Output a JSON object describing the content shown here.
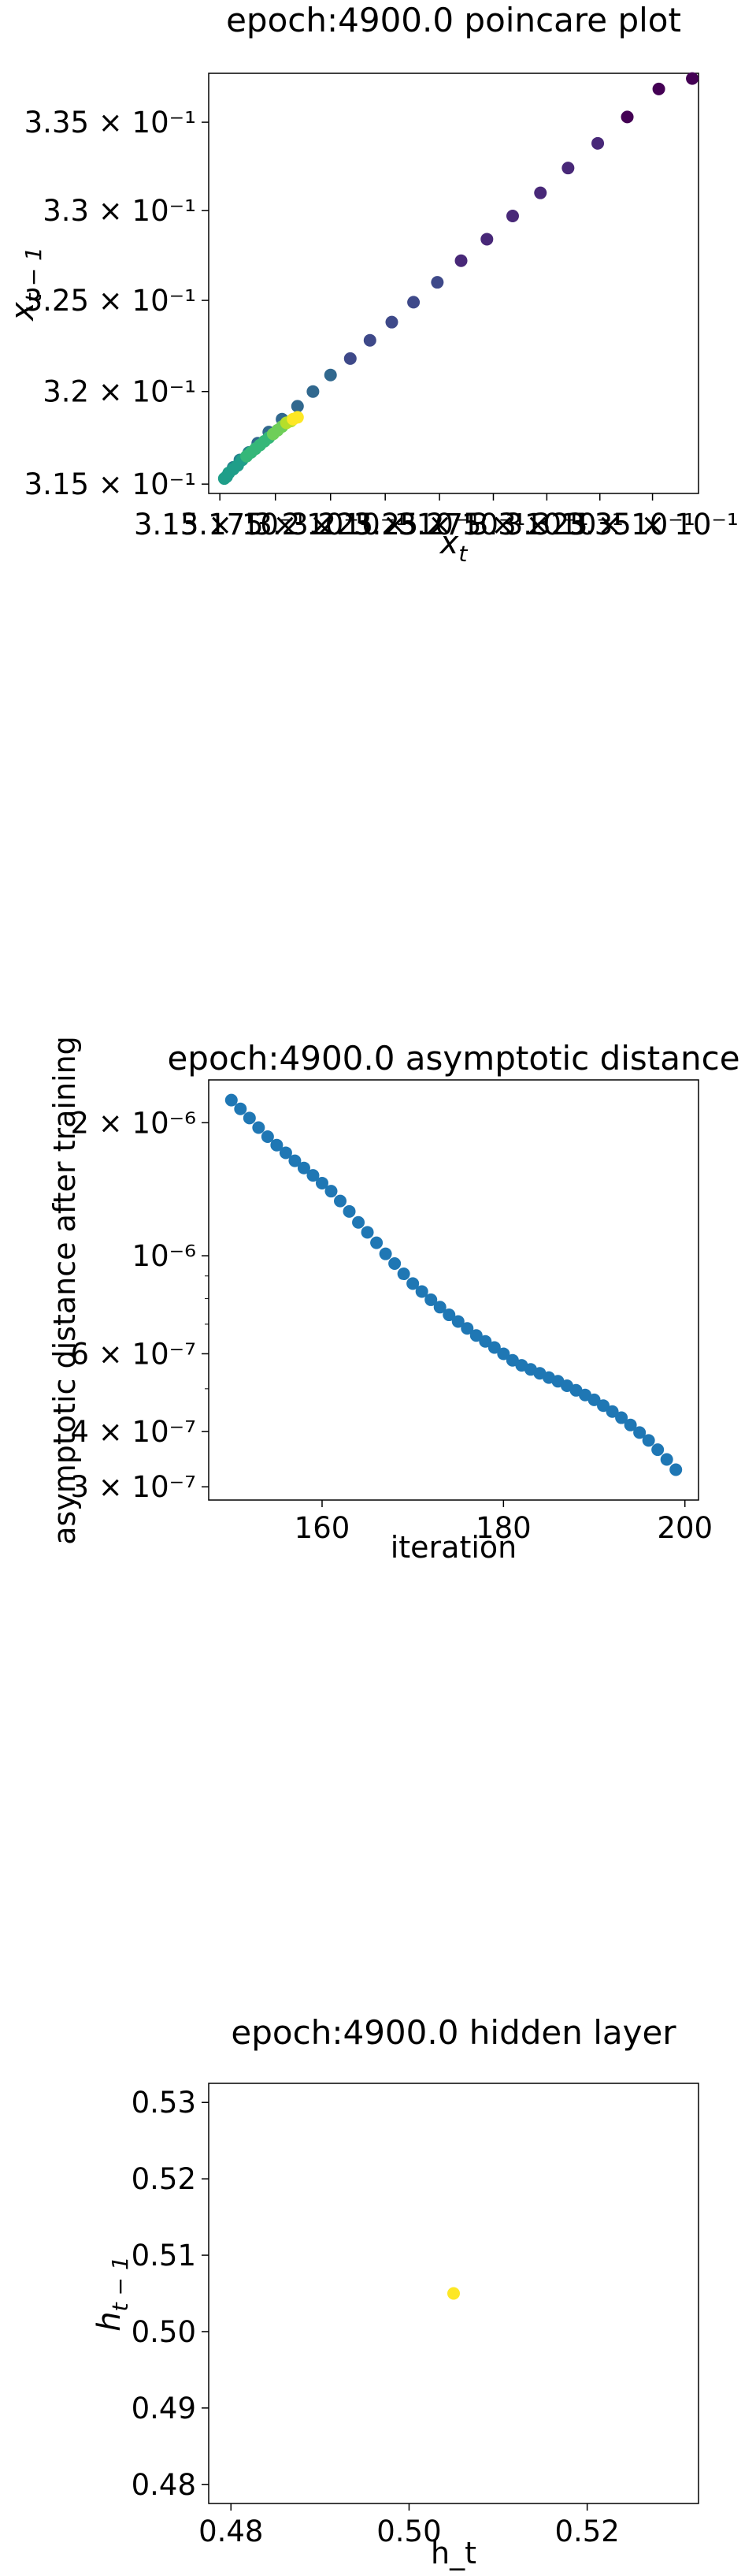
{
  "chart_data": [
    {
      "type": "scatter",
      "title": "epoch:4900.0 poincare plot",
      "xlabel": "x_t",
      "ylabel": "x_{t-1}",
      "x_scale": "log",
      "y_scale": "log",
      "xlim": [
        0.3145,
        0.3372
      ],
      "ylim": [
        0.3145,
        0.3378
      ],
      "y_ticks": [
        {
          "value": 0.315,
          "label": "3.15 × 10⁻¹"
        },
        {
          "value": 0.32,
          "label": "3.2 × 10⁻¹"
        },
        {
          "value": 0.325,
          "label": "3.25 × 10⁻¹"
        },
        {
          "value": 0.33,
          "label": "3.3 × 10⁻¹"
        },
        {
          "value": 0.335,
          "label": "3.35 × 10⁻¹"
        }
      ],
      "x_tick_text": "3.15.3.175.3.2.3.225.3.25.3.275.3.3.3.325.3.35 × 10⁻¹ (overlapping log-axis tick labels, 10⁻¹ repeated)",
      "x_ticks": [
        {
          "value": 0.315,
          "label": "3.15 × 10⁻¹"
        },
        {
          "value": 0.3175,
          "label": "3.175 × 10⁻¹"
        },
        {
          "value": 0.32,
          "label": "3.2 × 10⁻¹"
        },
        {
          "value": 0.3225,
          "label": "3.225 × 10⁻¹"
        },
        {
          "value": 0.325,
          "label": "3.25 × 10⁻¹"
        },
        {
          "value": 0.3275,
          "label": "3.275 × 10⁻¹"
        },
        {
          "value": 0.33,
          "label": "3.3 × 10⁻¹"
        },
        {
          "value": 0.3325,
          "label": "3.325 × 10⁻¹"
        },
        {
          "value": 0.335,
          "label": "3.35 × 10⁻¹"
        }
      ],
      "colormap": "viridis",
      "points": [
        {
          "x": 0.3369,
          "y": 0.3375,
          "c": 0.0
        },
        {
          "x": 0.3353,
          "y": 0.3369,
          "c": 0.02
        },
        {
          "x": 0.3338,
          "y": 0.3353,
          "c": 0.04
        },
        {
          "x": 0.3324,
          "y": 0.3338,
          "c": 0.06
        },
        {
          "x": 0.331,
          "y": 0.3324,
          "c": 0.08
        },
        {
          "x": 0.3297,
          "y": 0.331,
          "c": 0.1
        },
        {
          "x": 0.3284,
          "y": 0.3297,
          "c": 0.12
        },
        {
          "x": 0.3272,
          "y": 0.3284,
          "c": 0.14
        },
        {
          "x": 0.326,
          "y": 0.3272,
          "c": 0.16
        },
        {
          "x": 0.3249,
          "y": 0.326,
          "c": 0.18
        },
        {
          "x": 0.3238,
          "y": 0.3249,
          "c": 0.2
        },
        {
          "x": 0.3228,
          "y": 0.3238,
          "c": 0.22
        },
        {
          "x": 0.3218,
          "y": 0.3228,
          "c": 0.24
        },
        {
          "x": 0.3209,
          "y": 0.3218,
          "c": 0.26
        },
        {
          "x": 0.32,
          "y": 0.3209,
          "c": 0.28
        },
        {
          "x": 0.3192,
          "y": 0.32,
          "c": 0.3
        },
        {
          "x": 0.3185,
          "y": 0.3192,
          "c": 0.32
        },
        {
          "x": 0.3178,
          "y": 0.3185,
          "c": 0.34
        },
        {
          "x": 0.3172,
          "y": 0.3178,
          "c": 0.36
        },
        {
          "x": 0.3167,
          "y": 0.3172,
          "c": 0.38
        },
        {
          "x": 0.3163,
          "y": 0.3167,
          "c": 0.4
        },
        {
          "x": 0.3159,
          "y": 0.3163,
          "c": 0.42
        },
        {
          "x": 0.3156,
          "y": 0.3159,
          "c": 0.44
        },
        {
          "x": 0.3154,
          "y": 0.3156,
          "c": 0.46
        },
        {
          "x": 0.3153,
          "y": 0.3154,
          "c": 0.48
        },
        {
          "x": 0.3152,
          "y": 0.3153,
          "c": 0.5
        },
        {
          "x": 0.3153,
          "y": 0.3154,
          "c": 0.52
        },
        {
          "x": 0.3154,
          "y": 0.3156,
          "c": 0.54
        },
        {
          "x": 0.3156,
          "y": 0.3158,
          "c": 0.56
        },
        {
          "x": 0.3158,
          "y": 0.316,
          "c": 0.58
        },
        {
          "x": 0.316,
          "y": 0.3163,
          "c": 0.6
        },
        {
          "x": 0.3162,
          "y": 0.3165,
          "c": 0.62
        },
        {
          "x": 0.3164,
          "y": 0.3167,
          "c": 0.64
        },
        {
          "x": 0.3166,
          "y": 0.3169,
          "c": 0.66
        },
        {
          "x": 0.3168,
          "y": 0.3171,
          "c": 0.68
        },
        {
          "x": 0.317,
          "y": 0.3173,
          "c": 0.7
        },
        {
          "x": 0.3172,
          "y": 0.3175,
          "c": 0.72
        },
        {
          "x": 0.3174,
          "y": 0.3177,
          "c": 0.74
        },
        {
          "x": 0.3176,
          "y": 0.3179,
          "c": 0.76
        },
        {
          "x": 0.3178,
          "y": 0.3181,
          "c": 0.8
        },
        {
          "x": 0.318,
          "y": 0.3183,
          "c": 0.85
        },
        {
          "x": 0.3182,
          "y": 0.3184,
          "c": 0.9
        },
        {
          "x": 0.3183,
          "y": 0.3185,
          "c": 0.95
        },
        {
          "x": 0.3185,
          "y": 0.3186,
          "c": 1.0
        }
      ]
    },
    {
      "type": "scatter",
      "title": "epoch:4900.0 asymptotic distance",
      "xlabel": "iteration",
      "ylabel": "asymptotic distance after training",
      "x_scale": "linear",
      "y_scale": "log",
      "xlim": [
        147.5,
        201.5
      ],
      "ylim": [
        2.8e-07,
        2.5e-06
      ],
      "x_ticks": [
        {
          "value": 160,
          "label": "160"
        },
        {
          "value": 180,
          "label": "180"
        },
        {
          "value": 200,
          "label": "200"
        }
      ],
      "y_ticks": [
        {
          "value": 3e-07,
          "label": "3 × 10⁻⁷"
        },
        {
          "value": 4e-07,
          "label": "4 × 10⁻⁷"
        },
        {
          "value": 6e-07,
          "label": "6 × 10⁻⁷"
        },
        {
          "value": 1e-06,
          "label": "10⁻⁶"
        },
        {
          "value": 2e-06,
          "label": "2 × 10⁻⁶"
        }
      ],
      "color": "#1f77b4",
      "x": [
        150,
        151,
        152,
        153,
        154,
        155,
        156,
        157,
        158,
        159,
        160,
        161,
        162,
        163,
        164,
        165,
        166,
        167,
        168,
        169,
        170,
        171,
        172,
        173,
        174,
        175,
        176,
        177,
        178,
        179,
        180,
        181,
        182,
        183,
        184,
        185,
        186,
        187,
        188,
        189,
        190,
        191,
        192,
        193,
        194,
        195,
        196,
        197,
        198,
        199
      ],
      "y": [
        2.25e-06,
        2.15e-06,
        2.05e-06,
        1.95e-06,
        1.86e-06,
        1.78e-06,
        1.71e-06,
        1.64e-06,
        1.58e-06,
        1.52e-06,
        1.46e-06,
        1.4e-06,
        1.33e-06,
        1.26e-06,
        1.19e-06,
        1.13e-06,
        1.07e-06,
        1.01e-06,
        9.6e-07,
        9.1e-07,
        8.65e-07,
        8.3e-07,
        7.95e-07,
        7.65e-07,
        7.35e-07,
        7.1e-07,
        6.85e-07,
        6.6e-07,
        6.4e-07,
        6.2e-07,
        6e-07,
        5.8e-07,
        5.65e-07,
        5.53e-07,
        5.42e-07,
        5.3e-07,
        5.2e-07,
        5.08e-07,
        4.96e-07,
        4.84e-07,
        4.72e-07,
        4.58e-07,
        4.44e-07,
        4.3e-07,
        4.14e-07,
        3.98e-07,
        3.82e-07,
        3.64e-07,
        3.46e-07,
        3.28e-07
      ]
    },
    {
      "type": "scatter",
      "title": "epoch:4900.0 hidden layer",
      "xlabel": "h_t",
      "ylabel": "h_{t-1}",
      "x_scale": "linear",
      "y_scale": "linear",
      "xlim": [
        0.4775,
        0.5325
      ],
      "ylim": [
        0.4775,
        0.5325
      ],
      "x_ticks": [
        {
          "value": 0.48,
          "label": "0.48"
        },
        {
          "value": 0.5,
          "label": "0.50"
        },
        {
          "value": 0.52,
          "label": "0.52"
        }
      ],
      "y_ticks": [
        {
          "value": 0.48,
          "label": "0.48"
        },
        {
          "value": 0.49,
          "label": "0.49"
        },
        {
          "value": 0.5,
          "label": "0.50"
        },
        {
          "value": 0.51,
          "label": "0.51"
        },
        {
          "value": 0.52,
          "label": "0.52"
        },
        {
          "value": 0.53,
          "label": "0.53"
        }
      ],
      "color": "#fde725",
      "points": [
        {
          "x": 0.505,
          "y": 0.505
        }
      ]
    }
  ]
}
